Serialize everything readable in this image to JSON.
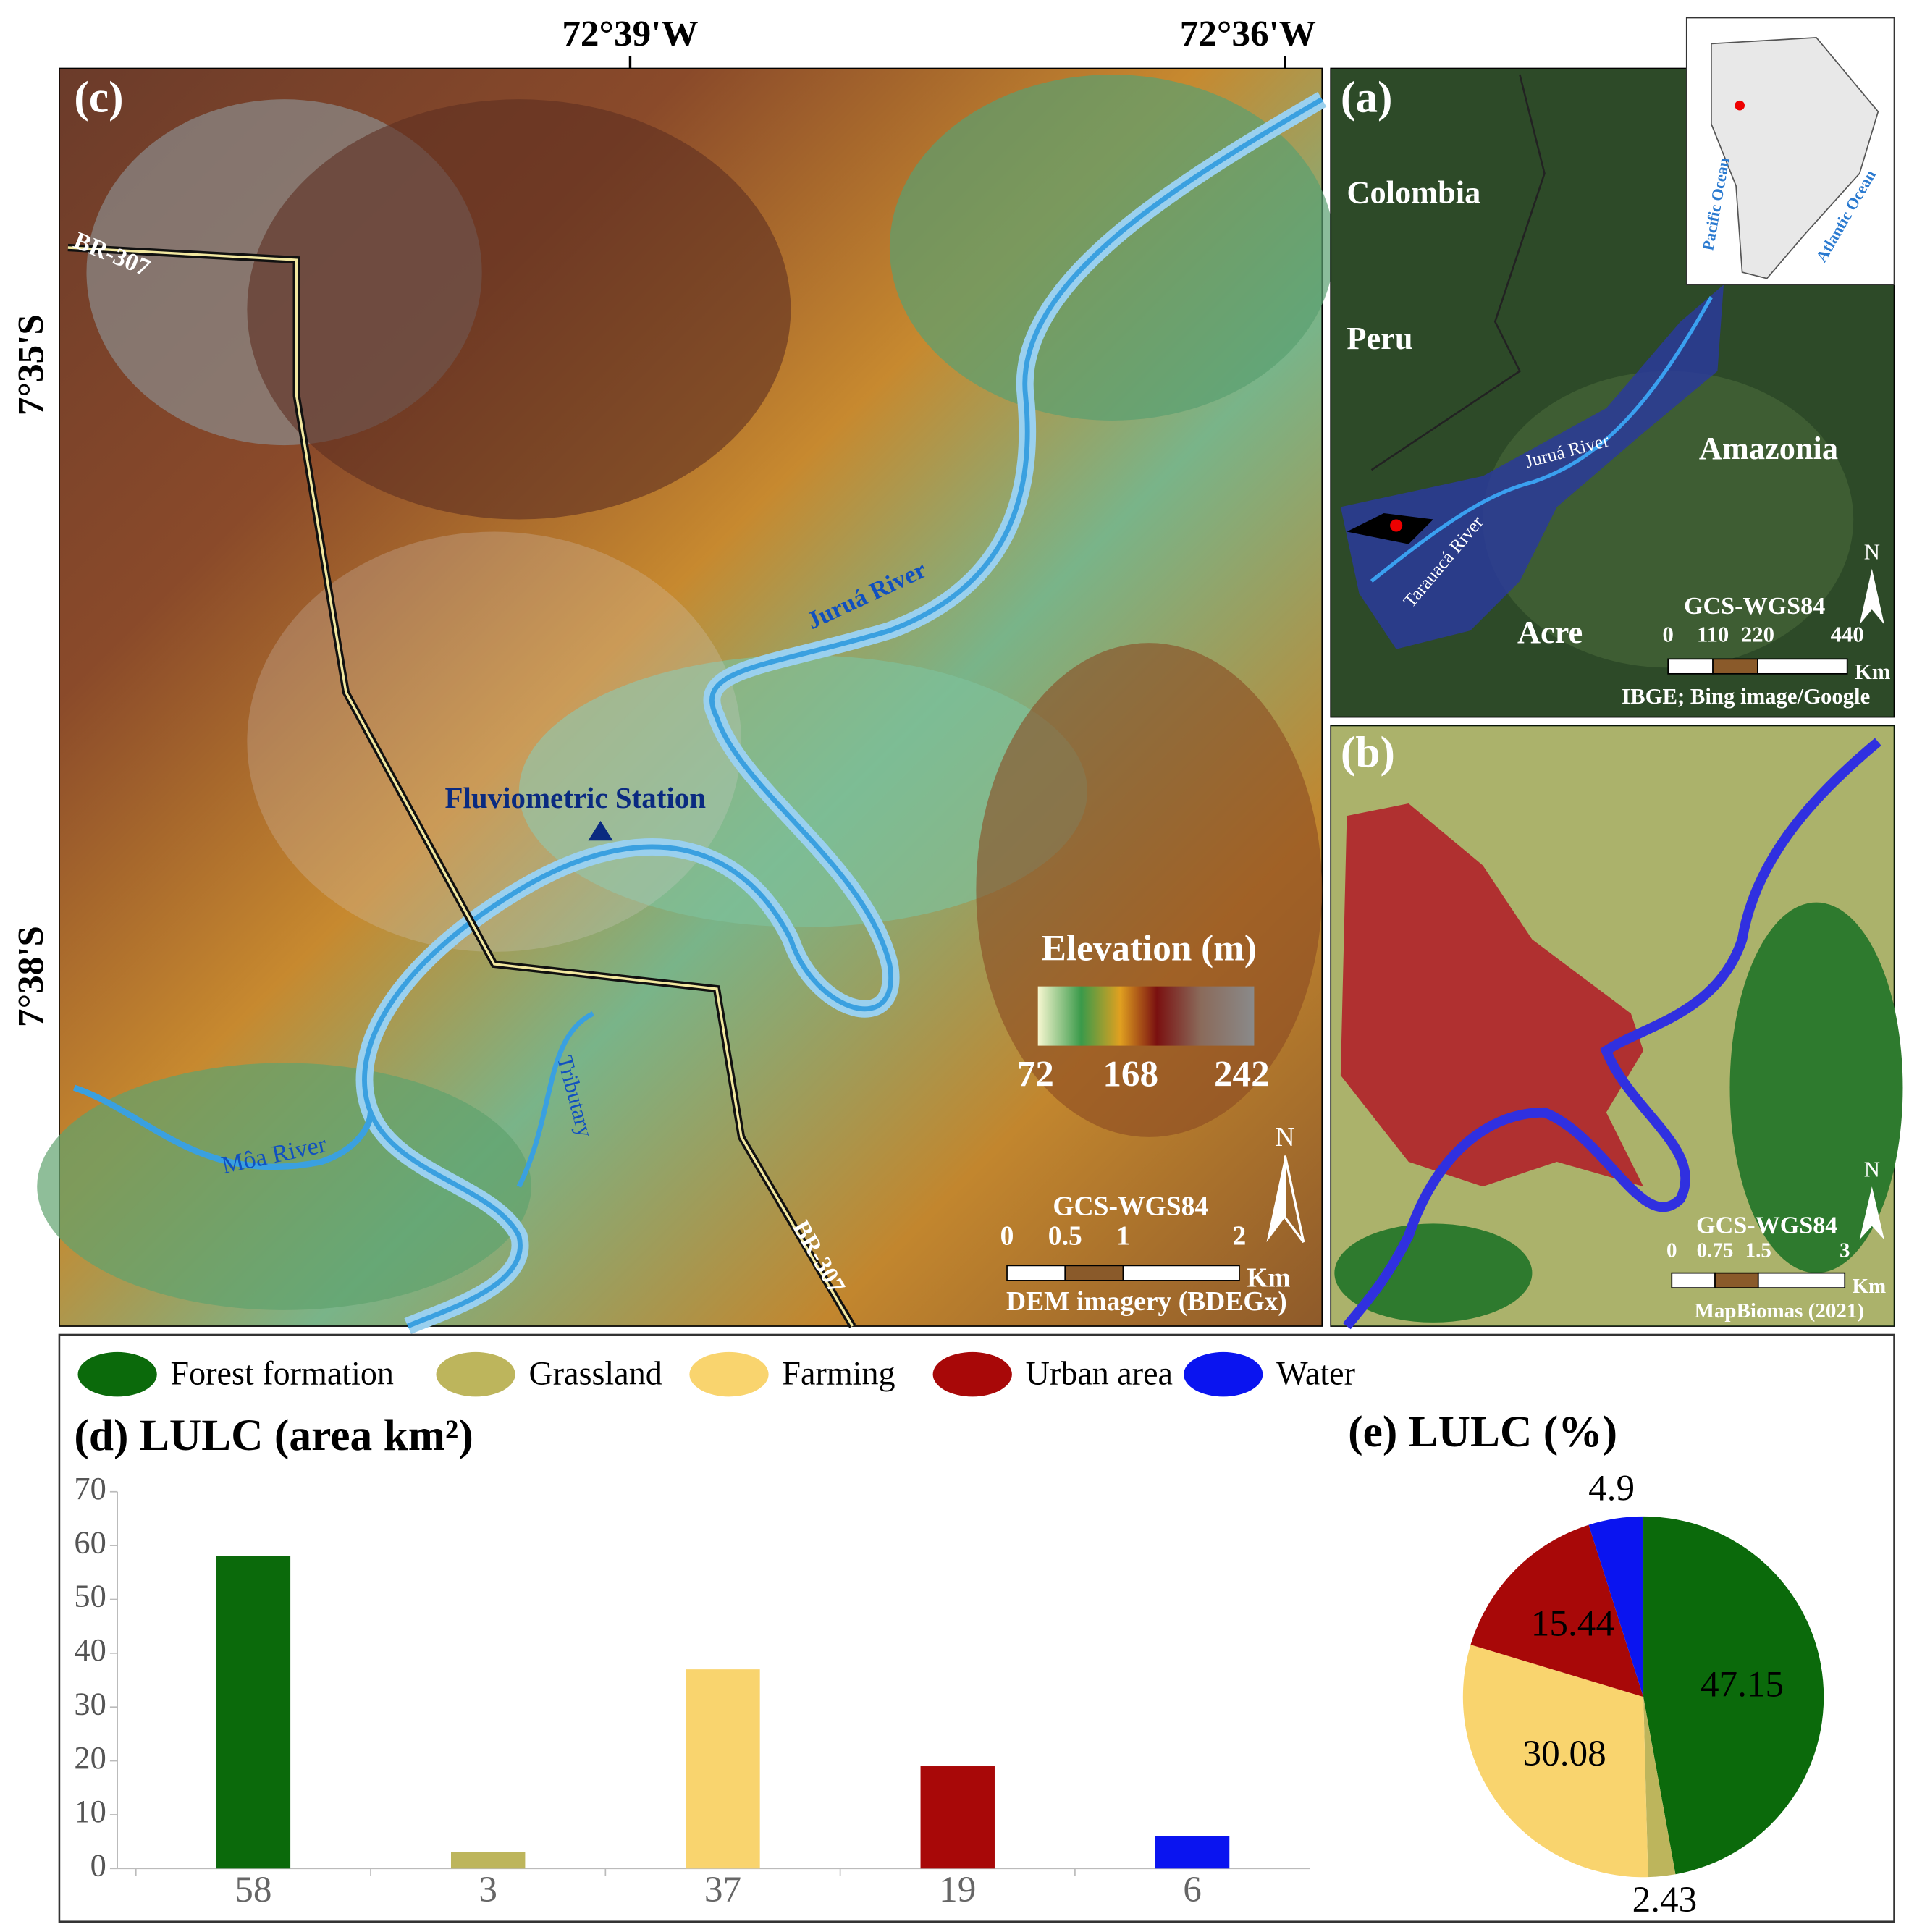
{
  "map_c": {
    "panel": "(c)",
    "lon_labels": [
      "72°39'W",
      "72°36'W"
    ],
    "lat_labels": [
      "7°35'S",
      "7°38'S"
    ],
    "labels": [
      "BR-307",
      "Juruá River",
      "Fluviometric Station",
      "Tributary",
      "Môa River",
      "BR-307"
    ],
    "elevation_title": "Elevation (m)",
    "elevation_ticks": [
      72,
      168,
      242
    ],
    "north": "N",
    "crs": "GCS-WGS84",
    "scale_ticks": [
      0,
      0.5,
      1,
      2
    ],
    "scale_unit": "Km",
    "source": "DEM imagery (BDEGx)"
  },
  "map_a": {
    "panel": "(a)",
    "labels": [
      "Colombia",
      "Peru",
      "Amazonia",
      "Acre",
      "Juruá River",
      "Tarauacá River"
    ],
    "inset_labels": [
      "Pacific Ocean",
      "Atlantic Ocean"
    ],
    "north": "N",
    "crs": "GCS-WGS84",
    "scale_ticks": [
      0,
      110,
      220,
      440
    ],
    "scale_unit": "Km",
    "source": "IBGE; Bing image/Google"
  },
  "map_b": {
    "panel": "(b)",
    "north": "N",
    "crs": "GCS-WGS84",
    "scale_ticks": [
      0,
      0.75,
      1.5,
      3
    ],
    "scale_unit": "Km",
    "source": "MapBiomas (2021)"
  },
  "chart_data": [
    {
      "type": "bar",
      "title": "(d) LULC (area km²)",
      "categories": [
        "Forest formation",
        "Grassland",
        "Farming",
        "Urban area",
        "Water"
      ],
      "values": [
        58,
        3,
        37,
        19,
        6
      ],
      "colors": [
        "#0b6a0b",
        "#bdb55c",
        "#f9d46e",
        "#a80808",
        "#0a14f0"
      ],
      "ylim": [
        0,
        70
      ],
      "yticks": [
        0,
        10,
        20,
        30,
        40,
        50,
        60,
        70
      ]
    },
    {
      "type": "pie",
      "title": "(e) LULC (%)",
      "values": [
        47.15,
        2.43,
        30.08,
        15.44,
        4.9
      ],
      "colors": [
        "#0b6a0b",
        "#bdb55c",
        "#f9d46e",
        "#a80808",
        "#0a14f0"
      ]
    }
  ]
}
